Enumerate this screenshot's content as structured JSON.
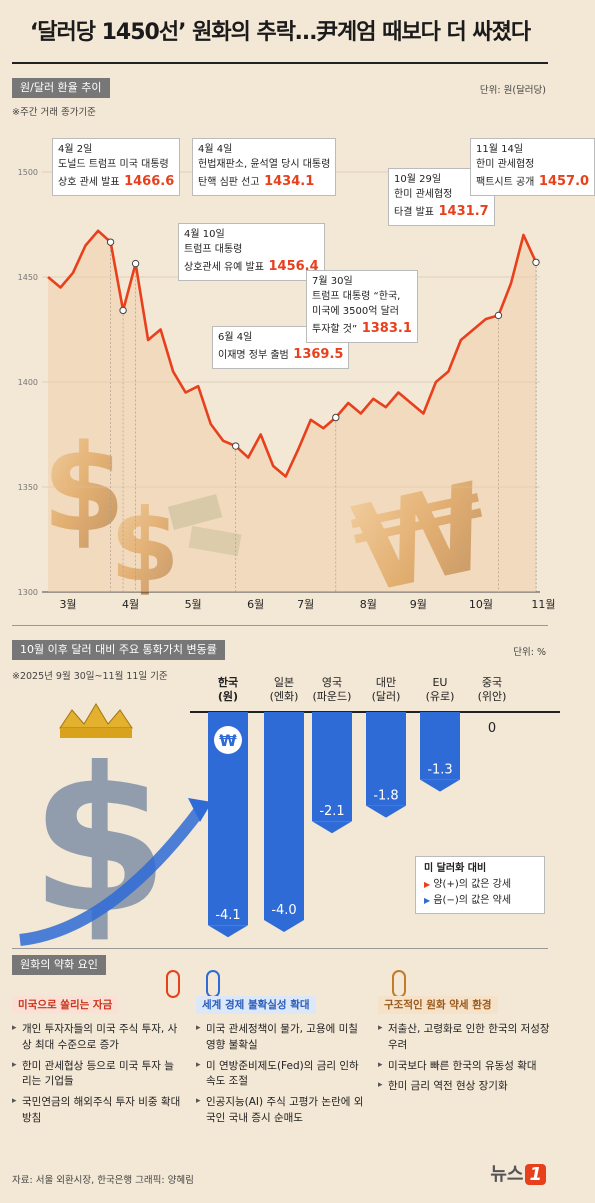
{
  "title": "‘달러당 1450선’ 원화의 추락…尹계엄 때보다 더 싸졌다",
  "section1": {
    "label": "원/달러 환율 추이",
    "unit": "단위: 원(달러당)",
    "note": "※주간 거래 종가기준"
  },
  "section2": {
    "label": "10월 이후 달러 대비 주요 통화가치 변동률",
    "unit": "단위: %",
    "note": "※2025년 9월 30일~11월 11일 기준"
  },
  "section3": {
    "label": "원화의 약화 요인"
  },
  "annotations": [
    {
      "date": "4월 2일",
      "text1": "도널드 트럼프 미국 대통령",
      "text2": "상호 관세 발표",
      "value": "1466.6"
    },
    {
      "date": "4월 4일",
      "text1": "헌법재판소, 윤석열 당시 대통령",
      "text2": "탄핵 심판 선고",
      "value": "1434.1"
    },
    {
      "date": "4월 10일",
      "text1": "트럼프 대통령",
      "text2": "상호관세 유예 발표",
      "value": "1456.4"
    },
    {
      "date": "6월 4일",
      "text1": "이재명 정부 출범",
      "text2": "",
      "value": "1369.5"
    },
    {
      "date": "7월 30일",
      "text1": "트럼프 대통령 “한국,",
      "text2": "미국에 3500억 달러",
      "text3": "투자할 것”",
      "value": "1383.1"
    },
    {
      "date": "10월 29일",
      "text1": "한미 관세협정",
      "text2": "타결 발표",
      "value": "1431.7"
    },
    {
      "date": "11월 14일",
      "text1": "한미 관세협정",
      "text2": "팩트시트 공개",
      "value": "1457.0"
    }
  ],
  "chart_data": [
    {
      "type": "line",
      "title": "원/달러 환율 추이",
      "ylabel": "",
      "ylim": [
        1300,
        1500
      ],
      "yticks": [
        1300,
        1350,
        1400,
        1450,
        1500
      ],
      "xlabels": [
        "3월",
        "4월",
        "5월",
        "6월",
        "7월",
        "8월",
        "9월",
        "10월",
        "11월"
      ],
      "x": [
        "3/3",
        "3/10",
        "3/17",
        "3/24",
        "3/31",
        "4/2",
        "4/4",
        "4/10",
        "4/17",
        "4/24",
        "5/1",
        "5/8",
        "5/15",
        "5/22",
        "5/29",
        "6/4",
        "6/11",
        "6/18",
        "6/25",
        "7/2",
        "7/9",
        "7/16",
        "7/23",
        "7/30",
        "8/6",
        "8/13",
        "8/20",
        "8/27",
        "9/3",
        "9/10",
        "9/17",
        "9/24",
        "10/1",
        "10/8",
        "10/15",
        "10/22",
        "10/29",
        "11/5",
        "11/11",
        "11/14"
      ],
      "values": [
        1450,
        1445,
        1452,
        1465,
        1472,
        1466.6,
        1434.1,
        1456.4,
        1420,
        1425,
        1405,
        1395,
        1398,
        1380,
        1372,
        1369.5,
        1364,
        1375,
        1360,
        1355,
        1368,
        1382,
        1378,
        1383.1,
        1390,
        1385,
        1392,
        1388,
        1395,
        1390,
        1385,
        1400,
        1405,
        1420,
        1425,
        1430,
        1431.7,
        1447,
        1470,
        1457.0
      ]
    },
    {
      "type": "bar",
      "title": "10월 이후 달러 대비 주요 통화가치 변동률",
      "categories": [
        "한국(원)",
        "일본(엔화)",
        "영국(파운드)",
        "대만(달러)",
        "EU(유로)",
        "중국(위안)"
      ],
      "values": [
        -4.1,
        -4.0,
        -2.1,
        -1.8,
        -1.3,
        0
      ],
      "labels": [
        "-4.1",
        "-4.0",
        "-2.1",
        "-1.8",
        "-1.3",
        "0"
      ]
    }
  ],
  "currencies": [
    {
      "l1": "한국",
      "l2": "(원)",
      "value_text": "-4.1",
      "symbol": "₩"
    },
    {
      "l1": "일본",
      "l2": "(엔화)",
      "value_text": "-4.0"
    },
    {
      "l1": "영국",
      "l2": "(파운드)",
      "value_text": "-2.1"
    },
    {
      "l1": "대만",
      "l2": "(달러)",
      "value_text": "-1.8"
    },
    {
      "l1": "EU",
      "l2": "(유로)",
      "value_text": "-1.3"
    },
    {
      "l1": "중국",
      "l2": "(위안)",
      "value_text": "0"
    }
  ],
  "legend": {
    "title": "미 달러화 대비",
    "pos": "양(+)의 값은 강세",
    "neg": "음(−)의 값은 약세"
  },
  "factors": [
    {
      "head": "미국으로 쏠리는 자금",
      "items": [
        "개인 투자자들의 미국 주식 투자, 사상 최대 수준으로 증가",
        "한미 관세협상 등으로 미국 투자 늘리는 기업들",
        "국민연금의 해외주식 투자 비중 확대 방침"
      ]
    },
    {
      "head": "세계 경제 불확실성 확대",
      "items": [
        "미국 관세정책이 물가, 고용에 미칠 영향 불확실",
        "미 연방준비제도(Fed)의 금리 인하 속도 조절",
        "인공지능(AI) 주식 고평가 논란에 외국인 국내 증시 순매도"
      ]
    },
    {
      "head": "구조적인 원화 약세 환경",
      "items": [
        "저출산, 고령화로 인한 한국의 저성장 우려",
        "미국보다 빠른 한국의 유동성 확대",
        "한미 금리 역전 현상 장기화"
      ]
    }
  ],
  "footer": "자료: 서울 외환시장, 한국은행   그래픽: 양혜림",
  "logo": {
    "text": "뉴스",
    "mark": "1"
  },
  "colors": {
    "line": "#e8401c",
    "bar": "#2f6bd6",
    "accent": "#e8401c",
    "bg": "#f3e7d5"
  }
}
